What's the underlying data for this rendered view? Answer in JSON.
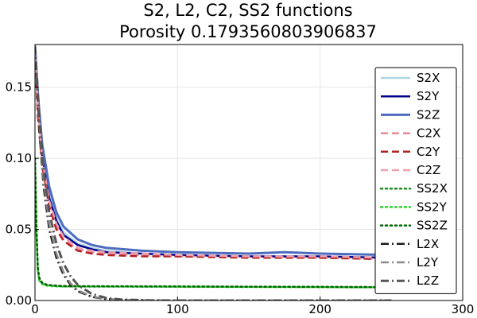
{
  "chart_data": {
    "type": "line",
    "title": "S2, L2, C2, SS2 functions",
    "subtitle": "Porosity 0.1793560803906837",
    "xlabel": "",
    "ylabel": "",
    "xlim": [
      0,
      300
    ],
    "ylim": [
      0,
      0.18
    ],
    "x_ticks": [
      0,
      100,
      200,
      300
    ],
    "x_tick_labels": [
      "0",
      "100",
      "200",
      "300"
    ],
    "y_ticks": [
      0,
      0.05,
      0.1,
      0.15
    ],
    "y_tick_labels": [
      "0.00",
      "0.05",
      "0.10",
      "0.15"
    ],
    "grid": true,
    "legend_position": "right",
    "series": [
      {
        "name": "S2X",
        "color": "#add8e6",
        "dash": "solid",
        "width": 2.5,
        "x": [
          0,
          2,
          5,
          10,
          15,
          20,
          30,
          40,
          50,
          75,
          100,
          150,
          200,
          250
        ],
        "y": [
          0.179,
          0.14,
          0.105,
          0.075,
          0.058,
          0.048,
          0.04,
          0.037,
          0.035,
          0.033,
          0.032,
          0.031,
          0.031,
          0.03
        ]
      },
      {
        "name": "S2Y",
        "color": "#00008b",
        "dash": "solid",
        "width": 2.5,
        "x": [
          0,
          2,
          5,
          10,
          15,
          20,
          30,
          40,
          50,
          75,
          100,
          150,
          200,
          250
        ],
        "y": [
          0.179,
          0.138,
          0.102,
          0.072,
          0.056,
          0.046,
          0.039,
          0.036,
          0.034,
          0.033,
          0.032,
          0.031,
          0.031,
          0.03
        ]
      },
      {
        "name": "S2Z",
        "color": "#4e6cbf",
        "dash": "solid",
        "width": 3,
        "x": [
          0,
          2,
          5,
          10,
          15,
          20,
          30,
          40,
          50,
          75,
          100,
          150,
          175,
          200,
          250
        ],
        "y": [
          0.179,
          0.145,
          0.11,
          0.08,
          0.062,
          0.052,
          0.043,
          0.039,
          0.037,
          0.035,
          0.034,
          0.033,
          0.034,
          0.033,
          0.032
        ]
      },
      {
        "name": "C2X",
        "color": "#e88a9a",
        "dash": "dash",
        "width": 2.5,
        "x": [
          0,
          2,
          5,
          10,
          15,
          20,
          30,
          40,
          50,
          75,
          100,
          150,
          200,
          250
        ],
        "y": [
          0.17,
          0.132,
          0.098,
          0.068,
          0.052,
          0.043,
          0.036,
          0.034,
          0.033,
          0.032,
          0.031,
          0.031,
          0.03,
          0.029
        ]
      },
      {
        "name": "C2Y",
        "color": "#b22222",
        "dash": "dash",
        "width": 2.5,
        "x": [
          0,
          2,
          5,
          10,
          15,
          20,
          30,
          40,
          50,
          75,
          100,
          150,
          200,
          250
        ],
        "y": [
          0.17,
          0.13,
          0.095,
          0.066,
          0.05,
          0.042,
          0.035,
          0.033,
          0.032,
          0.031,
          0.031,
          0.03,
          0.03,
          0.029
        ]
      },
      {
        "name": "C2Z",
        "color": "#f0a0ac",
        "dash": "dash",
        "width": 2.5,
        "x": [
          0,
          2,
          5,
          10,
          15,
          20,
          30,
          40,
          50,
          75,
          100,
          150,
          200,
          250
        ],
        "y": [
          0.172,
          0.136,
          0.1,
          0.07,
          0.054,
          0.045,
          0.037,
          0.035,
          0.034,
          0.033,
          0.032,
          0.031,
          0.031,
          0.03
        ]
      },
      {
        "name": "SS2X",
        "color": "#228b22",
        "dash": "dot",
        "width": 2.5,
        "x": [
          0,
          1,
          2,
          3,
          5,
          8,
          12,
          20,
          40,
          100,
          150,
          200,
          250
        ],
        "y": [
          0.1,
          0.05,
          0.022,
          0.015,
          0.012,
          0.011,
          0.0105,
          0.01,
          0.01,
          0.0098,
          0.0096,
          0.0095,
          0.0093
        ]
      },
      {
        "name": "SS2Y",
        "color": "#32cd32",
        "dash": "dot",
        "width": 2.5,
        "x": [
          0,
          1,
          2,
          3,
          5,
          8,
          12,
          20,
          40,
          100,
          150,
          200,
          250
        ],
        "y": [
          0.098,
          0.048,
          0.021,
          0.014,
          0.0115,
          0.0105,
          0.01,
          0.0098,
          0.0097,
          0.0096,
          0.0095,
          0.0094,
          0.0092
        ]
      },
      {
        "name": "SS2Z",
        "color": "#006400",
        "dash": "dot",
        "width": 2.5,
        "x": [
          0,
          1,
          2,
          3,
          5,
          8,
          12,
          20,
          40,
          100,
          150,
          200,
          250
        ],
        "y": [
          0.1,
          0.052,
          0.023,
          0.016,
          0.0125,
          0.0112,
          0.0107,
          0.0102,
          0.01,
          0.0099,
          0.0097,
          0.0096,
          0.0094
        ]
      },
      {
        "name": "L2X",
        "color": "#1a1a1a",
        "dash": "dashdot",
        "width": 2.5,
        "x": [
          0,
          3,
          6,
          10,
          15,
          20,
          25,
          30,
          40,
          50,
          60,
          80,
          100,
          150,
          250
        ],
        "y": [
          0.179,
          0.12,
          0.08,
          0.05,
          0.03,
          0.018,
          0.011,
          0.0065,
          0.0025,
          0.001,
          0.0004,
          0.0001,
          0,
          0,
          0
        ]
      },
      {
        "name": "L2Y",
        "color": "#8c8c8c",
        "dash": "dashdot",
        "width": 2.5,
        "x": [
          0,
          3,
          6,
          10,
          15,
          20,
          25,
          30,
          40,
          50,
          60,
          80,
          100,
          150,
          250
        ],
        "y": [
          0.179,
          0.125,
          0.085,
          0.054,
          0.033,
          0.02,
          0.012,
          0.0072,
          0.0028,
          0.0012,
          0.0005,
          0.0001,
          0,
          0,
          0
        ]
      },
      {
        "name": "L2Z",
        "color": "#555555",
        "dash": "dashdot",
        "width": 3,
        "x": [
          0,
          3,
          6,
          10,
          15,
          20,
          25,
          30,
          40,
          50,
          60,
          80,
          100,
          150,
          250
        ],
        "y": [
          0.179,
          0.13,
          0.092,
          0.062,
          0.04,
          0.026,
          0.017,
          0.011,
          0.0045,
          0.0018,
          0.0007,
          0.0001,
          0,
          0,
          0
        ]
      }
    ]
  }
}
